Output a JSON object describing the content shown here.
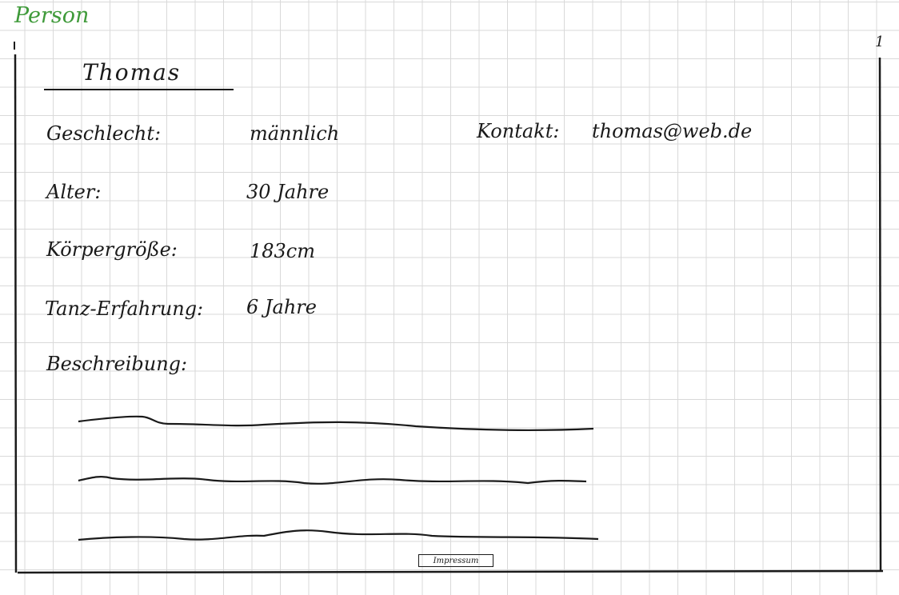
{
  "page": {
    "title": "Person",
    "page_marker": "1"
  },
  "profile": {
    "name": "Thomas",
    "fields": [
      {
        "label": "Geschlecht:",
        "value": "männlich"
      },
      {
        "label": "Alter:",
        "value": "30 Jahre"
      },
      {
        "label": "Körpergröße:",
        "value": "183cm"
      },
      {
        "label": "Tanz-Erfahrung:",
        "value": "6 Jahre"
      }
    ],
    "contact": {
      "label": "Kontakt:",
      "value": "thomas@web.de"
    },
    "description_label": "Beschreibung:"
  },
  "footer": {
    "impressum_label": "Impressum"
  },
  "colors": {
    "title": "#3f9a3a",
    "ink": "#1a1a1a",
    "grid": "#d9d9d9"
  }
}
